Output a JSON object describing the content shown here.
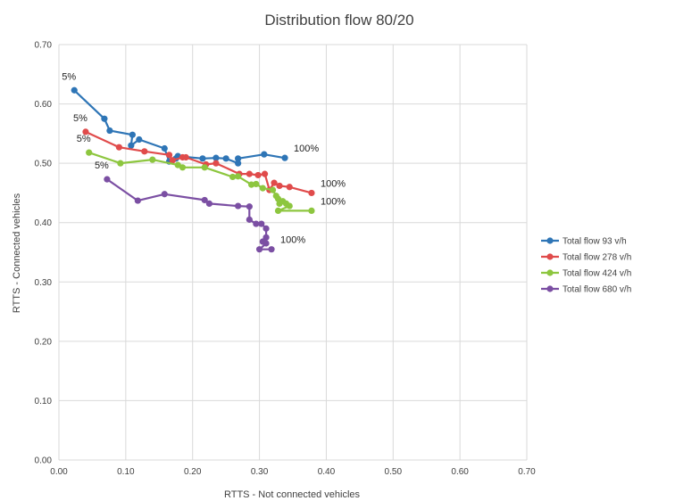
{
  "chart_data": {
    "type": "line",
    "title": "Distribution flow 80/20",
    "xlabel": "RTTS - Not connected vehicles",
    "ylabel": "RTTS - Connected vehicles",
    "xlim": [
      0,
      0.7
    ],
    "ylim": [
      0,
      0.7
    ],
    "xticks": [
      "0.00",
      "0.10",
      "0.20",
      "0.30",
      "0.40",
      "0.50",
      "0.60",
      "0.70"
    ],
    "yticks": [
      "0.00",
      "0.10",
      "0.20",
      "0.30",
      "0.40",
      "0.50",
      "0.60",
      "0.70"
    ],
    "grid": "vertical and horizontal",
    "legend_position": "right",
    "series": [
      {
        "name": "Total flow 93 v/h",
        "color": "#2e75b6",
        "points": [
          [
            0.023,
            0.623
          ],
          [
            0.068,
            0.575
          ],
          [
            0.076,
            0.555
          ],
          [
            0.11,
            0.548
          ],
          [
            0.108,
            0.53
          ],
          [
            0.12,
            0.54
          ],
          [
            0.158,
            0.525
          ],
          [
            0.165,
            0.503
          ],
          [
            0.175,
            0.508
          ],
          [
            0.178,
            0.512
          ],
          [
            0.215,
            0.508
          ],
          [
            0.235,
            0.509
          ],
          [
            0.25,
            0.508
          ],
          [
            0.268,
            0.5
          ],
          [
            0.268,
            0.508
          ],
          [
            0.307,
            0.515
          ],
          [
            0.338,
            0.509
          ]
        ]
      },
      {
        "name": "Total flow 278 v/h",
        "color": "#e04b4b",
        "points": [
          [
            0.04,
            0.553
          ],
          [
            0.09,
            0.527
          ],
          [
            0.128,
            0.52
          ],
          [
            0.165,
            0.514
          ],
          [
            0.17,
            0.505
          ],
          [
            0.185,
            0.51
          ],
          [
            0.19,
            0.51
          ],
          [
            0.22,
            0.498
          ],
          [
            0.235,
            0.5
          ],
          [
            0.27,
            0.482
          ],
          [
            0.285,
            0.482
          ],
          [
            0.298,
            0.48
          ],
          [
            0.308,
            0.482
          ],
          [
            0.315,
            0.455
          ],
          [
            0.322,
            0.467
          ],
          [
            0.33,
            0.462
          ],
          [
            0.345,
            0.46
          ],
          [
            0.378,
            0.45
          ]
        ]
      },
      {
        "name": "Total flow 424 v/h",
        "color": "#8dc63f",
        "points": [
          [
            0.045,
            0.518
          ],
          [
            0.092,
            0.5
          ],
          [
            0.14,
            0.506
          ],
          [
            0.178,
            0.497
          ],
          [
            0.185,
            0.493
          ],
          [
            0.218,
            0.493
          ],
          [
            0.26,
            0.477
          ],
          [
            0.268,
            0.478
          ],
          [
            0.288,
            0.464
          ],
          [
            0.295,
            0.465
          ],
          [
            0.305,
            0.458
          ],
          [
            0.32,
            0.455
          ],
          [
            0.325,
            0.445
          ],
          [
            0.328,
            0.44
          ],
          [
            0.33,
            0.432
          ],
          [
            0.335,
            0.436
          ],
          [
            0.34,
            0.432
          ],
          [
            0.345,
            0.428
          ],
          [
            0.328,
            0.42
          ],
          [
            0.378,
            0.42
          ]
        ]
      },
      {
        "name": "Total flow 680 v/h",
        "color": "#7b4fa3",
        "points": [
          [
            0.072,
            0.473
          ],
          [
            0.118,
            0.437
          ],
          [
            0.158,
            0.448
          ],
          [
            0.218,
            0.438
          ],
          [
            0.225,
            0.432
          ],
          [
            0.268,
            0.428
          ],
          [
            0.285,
            0.427
          ],
          [
            0.285,
            0.405
          ],
          [
            0.295,
            0.398
          ],
          [
            0.303,
            0.398
          ],
          [
            0.31,
            0.39
          ],
          [
            0.31,
            0.375
          ],
          [
            0.305,
            0.368
          ],
          [
            0.31,
            0.365
          ],
          [
            0.3,
            0.355
          ],
          [
            0.318,
            0.355
          ]
        ]
      }
    ],
    "annotations": [
      {
        "text": "5%",
        "x": 0.023,
        "y": 0.623
      },
      {
        "text": "5%",
        "x": 0.04,
        "y": 0.553
      },
      {
        "text": "5%",
        "x": 0.045,
        "y": 0.518
      },
      {
        "text": "5%",
        "x": 0.072,
        "y": 0.473
      },
      {
        "text": "100%",
        "x": 0.338,
        "y": 0.509
      },
      {
        "text": "100%",
        "x": 0.378,
        "y": 0.45
      },
      {
        "text": "100%",
        "x": 0.378,
        "y": 0.42
      },
      {
        "text": "100%",
        "x": 0.318,
        "y": 0.355
      }
    ]
  }
}
